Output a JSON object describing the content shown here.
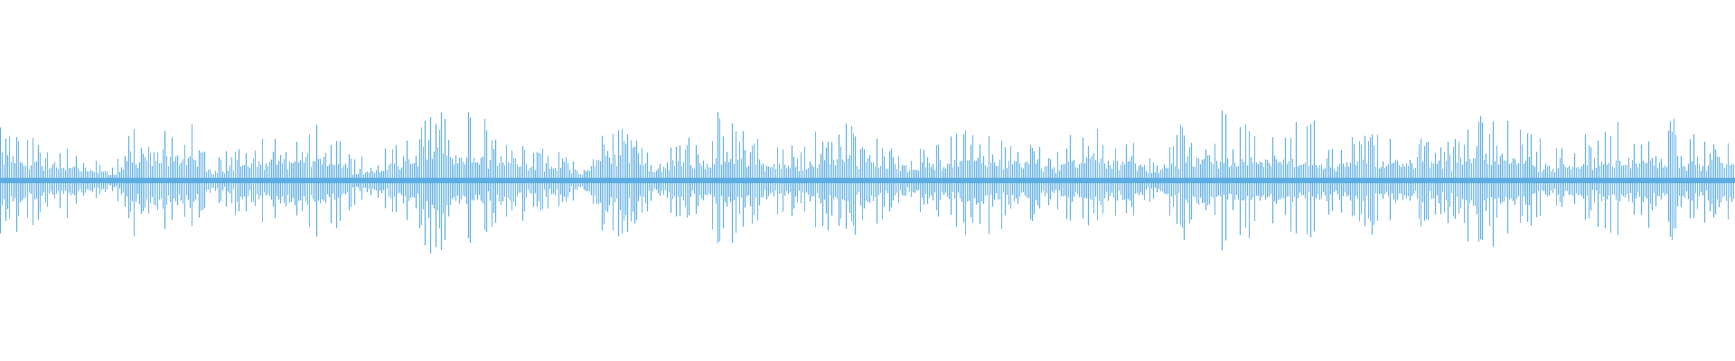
{
  "chart_data": {
    "type": "waveform",
    "title": "",
    "xlabel": "",
    "ylabel": "",
    "ylim": [
      -1,
      1
    ],
    "grid": false,
    "axes_visible": false,
    "color": "#5dade2",
    "background": "#ffffff",
    "segment_peak_amplitudes": [
      0.36,
      0.26,
      0.2,
      0.08,
      0.34,
      0.38,
      0.16,
      0.22,
      0.32,
      0.3,
      0.12,
      0.2,
      0.38,
      0.4,
      0.24,
      0.2,
      0.1,
      0.32,
      0.16,
      0.22,
      0.36,
      0.22,
      0.2,
      0.3,
      0.32,
      0.12,
      0.24,
      0.28,
      0.3,
      0.16,
      0.28,
      0.24,
      0.12,
      0.36,
      0.38,
      0.24,
      0.34,
      0.2,
      0.28,
      0.28,
      0.24,
      0.4,
      0.32,
      0.18,
      0.24,
      0.3,
      0.34,
      0.22
    ],
    "segment_base_amplitudes": [
      0.14,
      0.1,
      0.07,
      0.04,
      0.14,
      0.12,
      0.06,
      0.1,
      0.12,
      0.12,
      0.05,
      0.1,
      0.13,
      0.12,
      0.1,
      0.09,
      0.05,
      0.12,
      0.08,
      0.09,
      0.12,
      0.1,
      0.09,
      0.11,
      0.12,
      0.06,
      0.1,
      0.11,
      0.11,
      0.08,
      0.11,
      0.1,
      0.06,
      0.13,
      0.12,
      0.1,
      0.12,
      0.09,
      0.11,
      0.11,
      0.1,
      0.13,
      0.12,
      0.08,
      0.1,
      0.11,
      0.12,
      0.1
    ]
  }
}
